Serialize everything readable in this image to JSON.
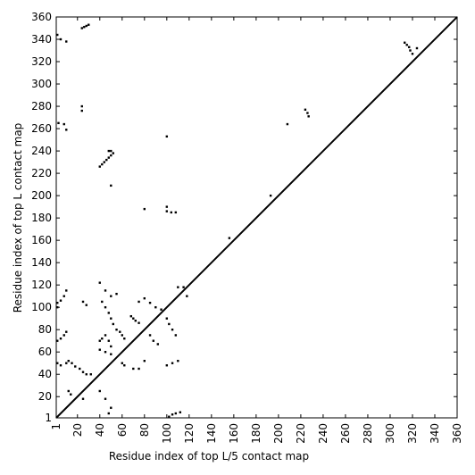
{
  "chart_data": {
    "type": "scatter",
    "xlabel": "Residue index of top L/5 contact map",
    "ylabel": "Residue index of top L contact map",
    "color": "#000000",
    "x": [
      2,
      5,
      10,
      24,
      26,
      28,
      30,
      24,
      24,
      3,
      8,
      10,
      40,
      42,
      44,
      46,
      48,
      50,
      52,
      50,
      48,
      50,
      80,
      100,
      100,
      104,
      108,
      100,
      156,
      193,
      208,
      224,
      226,
      227,
      313,
      315,
      317,
      318,
      320,
      324,
      2,
      2,
      5,
      8,
      10,
      2,
      5,
      8,
      10,
      2,
      5,
      10,
      12,
      15,
      18,
      22,
      25,
      28,
      32,
      12,
      14,
      25,
      28,
      40,
      42,
      45,
      48,
      50,
      52,
      55,
      58,
      60,
      62,
      40,
      42,
      45,
      48,
      50,
      40,
      45,
      50,
      45,
      50,
      55,
      68,
      70,
      72,
      75,
      60,
      62,
      70,
      75,
      80,
      75,
      80,
      85,
      90,
      95,
      85,
      88,
      92,
      100,
      102,
      105,
      108,
      100,
      105,
      110,
      110,
      115,
      118,
      40,
      45,
      50,
      48,
      105,
      108,
      112,
      102,
      25
    ],
    "values": [
      344,
      340,
      338,
      350,
      351,
      352,
      353,
      280,
      276,
      265,
      264,
      259,
      226,
      228,
      230,
      232,
      234,
      236,
      238,
      240,
      240,
      209,
      188,
      190,
      186,
      185,
      185,
      253,
      162,
      200,
      264,
      277,
      274,
      271,
      337,
      335,
      333,
      330,
      327,
      332,
      100,
      104,
      106,
      110,
      115,
      70,
      72,
      75,
      78,
      50,
      48,
      50,
      52,
      50,
      47,
      45,
      42,
      40,
      40,
      25,
      22,
      105,
      102,
      122,
      105,
      100,
      95,
      90,
      85,
      80,
      78,
      75,
      72,
      70,
      72,
      75,
      70,
      65,
      62,
      60,
      58,
      115,
      110,
      112,
      92,
      90,
      88,
      86,
      50,
      48,
      45,
      45,
      52,
      105,
      108,
      104,
      100,
      98,
      75,
      70,
      67,
      90,
      85,
      80,
      75,
      48,
      50,
      52,
      118,
      118,
      110,
      25,
      18,
      10,
      5,
      4,
      5,
      6,
      2,
      18
    ],
    "xlim": [
      1,
      360
    ],
    "ylim": [
      1,
      360
    ],
    "xticks": [
      1,
      20,
      40,
      60,
      80,
      100,
      120,
      140,
      160,
      180,
      200,
      220,
      240,
      260,
      280,
      300,
      320,
      340,
      360
    ],
    "yticks": [
      1,
      20,
      40,
      60,
      80,
      100,
      120,
      140,
      160,
      180,
      200,
      220,
      240,
      260,
      280,
      300,
      320,
      340,
      360
    ],
    "diagonal": true
  }
}
